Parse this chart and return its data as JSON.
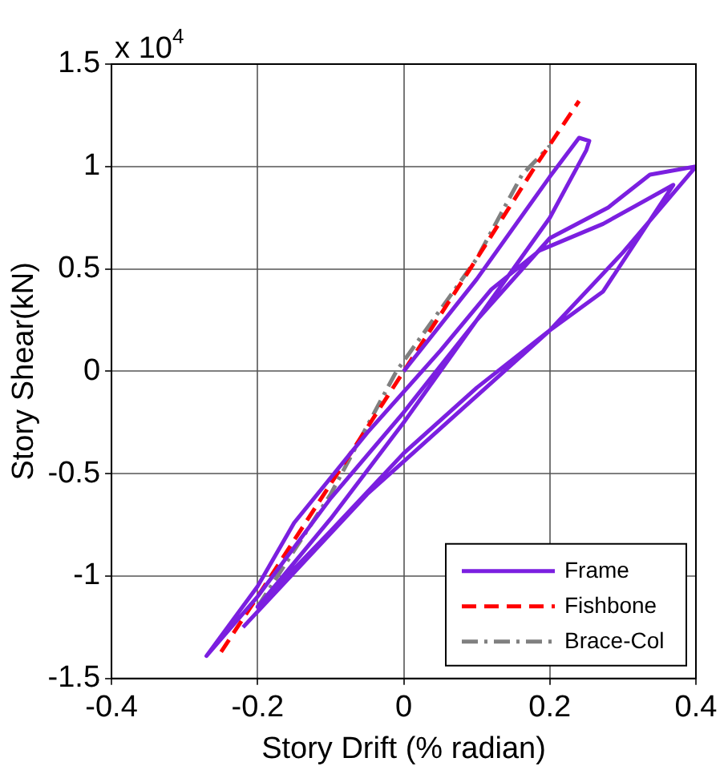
{
  "chart_data": {
    "type": "line",
    "xlabel": "Story Drift (% radian)",
    "ylabel": "Story Shear(kN)",
    "annotations": [
      "x 10$^{4}$"
    ],
    "xlim": [
      -0.4,
      0.4
    ],
    "xticks": [
      -0.4,
      -0.2,
      0,
      0.2,
      0.4
    ],
    "ylim": [
      -1.5,
      1.5
    ],
    "yticks": [
      -1.5,
      -1,
      -0.5,
      0,
      0.5,
      1,
      1.5
    ],
    "grid": true,
    "legend": "bottom right",
    "marker": "none",
    "series": [
      {
        "name": "Frame",
        "color": "#7b1fe0",
        "line_style": "solid",
        "x": [
          0,
          0.1,
          0.2,
          0.24,
          0.254,
          0.25,
          0.2,
          0.1,
          0,
          -0.1,
          -0.2,
          -0.27,
          -0.2,
          -0.15,
          -0.05,
          0.05,
          0.12,
          0.186,
          0.273,
          0.369,
          0.273,
          0.2,
          0.1,
          0,
          -0.1,
          -0.2,
          -0.1,
          0,
          0.1,
          0.2,
          0.28,
          0.337,
          0.4,
          0.3,
          0.2,
          0.1,
          -0.05,
          -0.22
        ],
        "values": [
          0,
          0.45,
          0.95,
          1.14,
          1.125,
          1.08,
          0.75,
          0.25,
          -0.2,
          -0.62,
          -1.1,
          -1.39,
          -1.05,
          -0.74,
          -0.3,
          0.1,
          0.4,
          0.59,
          0.72,
          0.91,
          0.39,
          0.2,
          -0.08,
          -0.4,
          -0.78,
          -1.15,
          -0.72,
          -0.25,
          0.25,
          0.65,
          0.8,
          0.96,
          1,
          0.58,
          0.2,
          -0.12,
          -0.6,
          -1.25
        ]
      },
      {
        "name": "Fishbone",
        "color": "#ff0000",
        "line_style": "dashed",
        "x": [
          -0.25,
          -0.2,
          -0.1,
          0,
          0.1,
          0.18,
          0.24
        ],
        "values": [
          -1.37,
          -1.1,
          -0.55,
          0,
          0.55,
          1,
          1.32
        ]
      },
      {
        "name": "Brace-Col",
        "color": "#808080",
        "line_style": "dashdot",
        "x": [
          -0.2,
          -0.1,
          -0.01,
          0.1,
          0.162,
          0.2
        ],
        "values": [
          -1.15,
          -0.6,
          0,
          0.55,
          0.96,
          1.1
        ]
      }
    ]
  }
}
